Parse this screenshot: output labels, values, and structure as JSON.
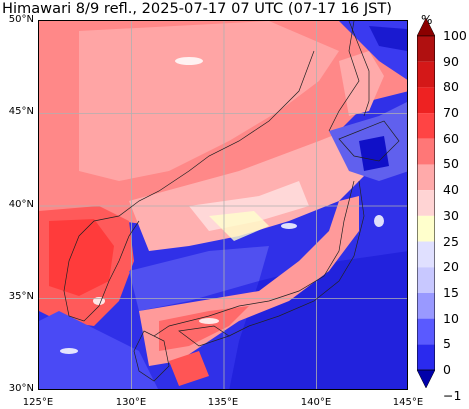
{
  "title": "Himawari 8/9 refl., 2025-07-17 07 UTC (07-17 16 JST)",
  "map": {
    "lon_range": [
      125,
      145
    ],
    "lat_range": [
      30,
      50
    ],
    "lat_ticks": [
      "50°N",
      "45°N",
      "40°N",
      "35°N",
      "30°N"
    ],
    "lon_ticks": [
      "125°E",
      "130°E",
      "135°E",
      "140°E",
      "145°E"
    ],
    "gridlines": true
  },
  "colorbar": {
    "unit": "%",
    "ticks": [
      "100",
      "90",
      "80",
      "70",
      "60",
      "50",
      "40",
      "30",
      "25",
      "20",
      "15",
      "10",
      "5",
      "0",
      "−1"
    ],
    "colors": [
      "#8b0000",
      "#b01010",
      "#d41818",
      "#ee2222",
      "#ff4444",
      "#ff7777",
      "#ffaaaa",
      "#ffd4d4",
      "#ffffcc",
      "#e0e0ff",
      "#c8c8ff",
      "#9999ff",
      "#5a5aff",
      "#2a2aee",
      "#0000aa"
    ]
  }
}
